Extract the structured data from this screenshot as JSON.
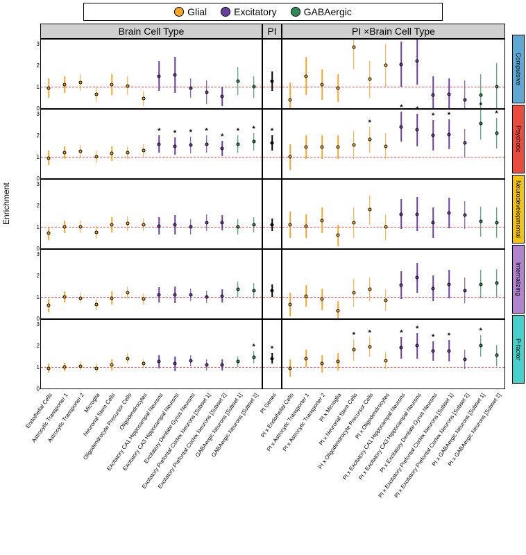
{
  "legend": {
    "items": [
      {
        "label": "Glial",
        "color": "#f5a623"
      },
      {
        "label": "Excitatory",
        "color": "#6b3fa0"
      },
      {
        "label": "GABAergic",
        "color": "#2e8b57"
      }
    ]
  },
  "colors": {
    "glial": "#f5a623",
    "excitatory": "#6b3fa0",
    "gaba": "#2e8b57",
    "pi": "#000000",
    "ref": "#ff0000",
    "header_bg": "#d0d0d0"
  },
  "panel_headers": {
    "bc": "Brain Cell Type",
    "pi": "PI",
    "pb": "PI ×Brain Cell Type"
  },
  "y_axis": {
    "label": "Enrichment",
    "min": 0,
    "max": 3.2,
    "ticks": [
      0,
      1,
      2,
      3
    ],
    "ref": 1
  },
  "outcomes": [
    {
      "name": "Compulsive",
      "color": "#5fa8d3"
    },
    {
      "name": "Psychotic",
      "color": "#e74c3c"
    },
    {
      "name": "Neurodevelopmental",
      "color": "#f1c40f"
    },
    {
      "name": "Internalizing",
      "color": "#b084cc"
    },
    {
      "name": "P-factor",
      "color": "#48d1cc"
    }
  ],
  "bc_categories": [
    {
      "label": "Endothelial Cells",
      "group": "glial"
    },
    {
      "label": "Astrocytic Transporter 1",
      "group": "glial"
    },
    {
      "label": "Astrocytic Transporter 2",
      "group": "glial"
    },
    {
      "label": "Microglia",
      "group": "glial"
    },
    {
      "label": "Neuronal Stem Cells",
      "group": "glial"
    },
    {
      "label": "Oligodendrocyte Precursor Cells",
      "group": "glial"
    },
    {
      "label": "Oligodendrocytes",
      "group": "glial"
    },
    {
      "label": "Excitatory CA1 Hippocampal Neurons",
      "group": "excitatory"
    },
    {
      "label": "Excitatory CA3 Hippocampal Neurons",
      "group": "excitatory"
    },
    {
      "label": "Excitatory Dentate Gyrus Neurons",
      "group": "excitatory"
    },
    {
      "label": "Excitatory Prefontal Cortex Neurons [Subset 1]",
      "group": "excitatory"
    },
    {
      "label": "Excitatory Prefontal Cortex Neurons [Subset 2]",
      "group": "excitatory"
    },
    {
      "label": "GABAergic Neurons [Subset 1]",
      "group": "gaba"
    },
    {
      "label": "GABAergic Neurons [Subset 2]",
      "group": "gaba"
    }
  ],
  "pi_label": "PI Genes",
  "pb_prefix": "PI x ",
  "data": {
    "Compulsive": {
      "bc": [
        {
          "v": 0.95,
          "lo": 0.5,
          "hi": 1.4
        },
        {
          "v": 1.1,
          "lo": 0.7,
          "hi": 1.5
        },
        {
          "v": 1.2,
          "lo": 0.8,
          "hi": 1.6
        },
        {
          "v": 0.65,
          "lo": 0.3,
          "hi": 1.0
        },
        {
          "v": 1.1,
          "lo": 0.6,
          "hi": 1.6
        },
        {
          "v": 1.05,
          "lo": 0.6,
          "hi": 1.5
        },
        {
          "v": 0.45,
          "lo": 0.1,
          "hi": 0.8
        },
        {
          "v": 1.5,
          "lo": 0.8,
          "hi": 2.2
        },
        {
          "v": 1.55,
          "lo": 0.7,
          "hi": 2.4
        },
        {
          "v": 0.95,
          "lo": 0.5,
          "hi": 1.4
        },
        {
          "v": 0.75,
          "lo": 0.2,
          "hi": 1.3
        },
        {
          "v": 0.55,
          "lo": 0.1,
          "hi": 1.0
        },
        {
          "v": 1.25,
          "lo": 0.6,
          "hi": 1.9
        },
        {
          "v": 1.0,
          "lo": 0.5,
          "hi": 1.5
        }
      ],
      "pi": {
        "v": 1.25,
        "lo": 0.8,
        "hi": 1.7
      },
      "pb": [
        {
          "v": 0.4,
          "lo": 0.0,
          "hi": 1.2
        },
        {
          "v": 1.5,
          "lo": 0.6,
          "hi": 2.4
        },
        {
          "v": 1.1,
          "lo": 0.4,
          "hi": 1.8
        },
        {
          "v": 0.95,
          "lo": 0.3,
          "hi": 1.6
        },
        {
          "v": 2.85,
          "lo": 1.8,
          "hi": 3.2
        },
        {
          "v": 1.35,
          "lo": 0.5,
          "hi": 2.2
        },
        {
          "v": 2.0,
          "lo": 1.0,
          "hi": 3.0
        },
        {
          "v": 2.05,
          "lo": 1.0,
          "hi": 3.1
        },
        {
          "v": 2.2,
          "lo": 1.1,
          "hi": 3.2
        },
        {
          "v": 0.6,
          "lo": 0.0,
          "hi": 1.5
        },
        {
          "v": 0.65,
          "lo": 0.0,
          "hi": 1.4
        },
        {
          "v": 0.4,
          "lo": 0.0,
          "hi": 1.3
        },
        {
          "v": 0.6,
          "lo": 0.0,
          "hi": 1.6
        },
        {
          "v": 1.0,
          "lo": 0.0,
          "hi": 2.1
        }
      ]
    },
    "Psychotic": {
      "bc": [
        {
          "v": 0.95,
          "lo": 0.6,
          "hi": 1.3
        },
        {
          "v": 1.2,
          "lo": 0.9,
          "hi": 1.5
        },
        {
          "v": 1.25,
          "lo": 0.95,
          "hi": 1.55
        },
        {
          "v": 1.0,
          "lo": 0.7,
          "hi": 1.3
        },
        {
          "v": 1.15,
          "lo": 0.8,
          "hi": 1.5
        },
        {
          "v": 1.2,
          "lo": 0.9,
          "hi": 1.5
        },
        {
          "v": 1.3,
          "lo": 1.0,
          "hi": 1.6
        },
        {
          "v": 1.6,
          "lo": 1.2,
          "hi": 2.0,
          "s": true
        },
        {
          "v": 1.5,
          "lo": 1.1,
          "hi": 1.9,
          "s": true
        },
        {
          "v": 1.55,
          "lo": 1.15,
          "hi": 1.95,
          "s": true
        },
        {
          "v": 1.6,
          "lo": 1.2,
          "hi": 2.0,
          "s": true
        },
        {
          "v": 1.4,
          "lo": 1.05,
          "hi": 1.75,
          "s": true
        },
        {
          "v": 1.6,
          "lo": 1.2,
          "hi": 2.0,
          "s": true
        },
        {
          "v": 1.7,
          "lo": 1.3,
          "hi": 2.1,
          "s": true
        }
      ],
      "pi": {
        "v": 1.65,
        "lo": 1.3,
        "hi": 2.0,
        "s": true
      },
      "pb": [
        {
          "v": 1.0,
          "lo": 0.4,
          "hi": 1.6
        },
        {
          "v": 1.45,
          "lo": 0.9,
          "hi": 2.0
        },
        {
          "v": 1.45,
          "lo": 0.9,
          "hi": 2.0
        },
        {
          "v": 1.45,
          "lo": 0.9,
          "hi": 2.0
        },
        {
          "v": 1.55,
          "lo": 0.9,
          "hi": 2.2
        },
        {
          "v": 1.8,
          "lo": 1.2,
          "hi": 2.4,
          "s": true
        },
        {
          "v": 1.5,
          "lo": 0.9,
          "hi": 2.1
        },
        {
          "v": 2.4,
          "lo": 1.7,
          "hi": 3.1,
          "s": true
        },
        {
          "v": 2.25,
          "lo": 1.5,
          "hi": 3.0,
          "s": true
        },
        {
          "v": 2.0,
          "lo": 1.3,
          "hi": 2.7,
          "s": true
        },
        {
          "v": 2.05,
          "lo": 1.35,
          "hi": 2.75,
          "s": true
        },
        {
          "v": 1.65,
          "lo": 1.0,
          "hi": 2.3
        },
        {
          "v": 2.55,
          "lo": 1.8,
          "hi": 3.2,
          "s": true
        },
        {
          "v": 2.1,
          "lo": 1.4,
          "hi": 2.8,
          "s": true
        }
      ]
    },
    "Neurodevelopmental": {
      "bc": [
        {
          "v": 0.7,
          "lo": 0.4,
          "hi": 1.0
        },
        {
          "v": 1.0,
          "lo": 0.7,
          "hi": 1.3
        },
        {
          "v": 1.0,
          "lo": 0.7,
          "hi": 1.3
        },
        {
          "v": 0.75,
          "lo": 0.45,
          "hi": 1.05
        },
        {
          "v": 1.1,
          "lo": 0.75,
          "hi": 1.45
        },
        {
          "v": 1.15,
          "lo": 0.8,
          "hi": 1.5
        },
        {
          "v": 1.1,
          "lo": 0.8,
          "hi": 1.4
        },
        {
          "v": 1.05,
          "lo": 0.65,
          "hi": 1.45
        },
        {
          "v": 1.1,
          "lo": 0.65,
          "hi": 1.55
        },
        {
          "v": 1.0,
          "lo": 0.65,
          "hi": 1.35
        },
        {
          "v": 1.2,
          "lo": 0.8,
          "hi": 1.6
        },
        {
          "v": 1.2,
          "lo": 0.85,
          "hi": 1.55
        },
        {
          "v": 1.0,
          "lo": 0.65,
          "hi": 1.35
        },
        {
          "v": 1.1,
          "lo": 0.75,
          "hi": 1.45
        }
      ],
      "pi": {
        "v": 1.1,
        "lo": 0.8,
        "hi": 1.4
      },
      "pb": [
        {
          "v": 1.1,
          "lo": 0.5,
          "hi": 1.7
        },
        {
          "v": 1.05,
          "lo": 0.5,
          "hi": 1.6
        },
        {
          "v": 1.3,
          "lo": 0.7,
          "hi": 1.9
        },
        {
          "v": 0.6,
          "lo": 0.1,
          "hi": 1.1
        },
        {
          "v": 1.2,
          "lo": 0.5,
          "hi": 1.9
        },
        {
          "v": 1.8,
          "lo": 1.1,
          "hi": 2.5
        },
        {
          "v": 1.0,
          "lo": 0.4,
          "hi": 1.6
        },
        {
          "v": 1.6,
          "lo": 0.9,
          "hi": 2.3
        },
        {
          "v": 1.6,
          "lo": 0.8,
          "hi": 2.4
        },
        {
          "v": 1.2,
          "lo": 0.5,
          "hi": 1.9
        },
        {
          "v": 1.65,
          "lo": 0.95,
          "hi": 2.35
        },
        {
          "v": 1.55,
          "lo": 0.9,
          "hi": 2.2
        },
        {
          "v": 1.25,
          "lo": 0.55,
          "hi": 1.95
        },
        {
          "v": 1.2,
          "lo": 0.5,
          "hi": 1.9
        }
      ]
    },
    "Internalizing": {
      "bc": [
        {
          "v": 0.6,
          "lo": 0.3,
          "hi": 0.9
        },
        {
          "v": 1.0,
          "lo": 0.75,
          "hi": 1.25
        },
        {
          "v": 0.95,
          "lo": 0.7,
          "hi": 1.2
        },
        {
          "v": 0.65,
          "lo": 0.4,
          "hi": 0.9
        },
        {
          "v": 0.95,
          "lo": 0.65,
          "hi": 1.25
        },
        {
          "v": 1.2,
          "lo": 0.9,
          "hi": 1.5
        },
        {
          "v": 0.9,
          "lo": 0.65,
          "hi": 1.15
        },
        {
          "v": 1.1,
          "lo": 0.75,
          "hi": 1.45
        },
        {
          "v": 1.1,
          "lo": 0.7,
          "hi": 1.5
        },
        {
          "v": 1.1,
          "lo": 0.8,
          "hi": 1.4
        },
        {
          "v": 1.0,
          "lo": 0.7,
          "hi": 1.3
        },
        {
          "v": 1.05,
          "lo": 0.75,
          "hi": 1.35
        },
        {
          "v": 1.35,
          "lo": 1.0,
          "hi": 1.7
        },
        {
          "v": 1.3,
          "lo": 0.95,
          "hi": 1.65
        }
      ],
      "pi": {
        "v": 1.3,
        "lo": 1.0,
        "hi": 1.6
      },
      "pb": [
        {
          "v": 0.65,
          "lo": 0.1,
          "hi": 1.2
        },
        {
          "v": 1.05,
          "lo": 0.55,
          "hi": 1.55
        },
        {
          "v": 0.9,
          "lo": 0.4,
          "hi": 1.4
        },
        {
          "v": 0.35,
          "lo": 0.0,
          "hi": 0.8
        },
        {
          "v": 1.2,
          "lo": 0.55,
          "hi": 1.85
        },
        {
          "v": 1.35,
          "lo": 0.8,
          "hi": 1.9
        },
        {
          "v": 0.85,
          "lo": 0.35,
          "hi": 1.35
        },
        {
          "v": 1.55,
          "lo": 0.9,
          "hi": 2.2
        },
        {
          "v": 1.9,
          "lo": 1.2,
          "hi": 2.6
        },
        {
          "v": 1.4,
          "lo": 0.8,
          "hi": 2.0
        },
        {
          "v": 1.6,
          "lo": 0.95,
          "hi": 2.25
        },
        {
          "v": 1.3,
          "lo": 0.7,
          "hi": 1.9
        },
        {
          "v": 1.6,
          "lo": 0.95,
          "hi": 2.25
        },
        {
          "v": 1.65,
          "lo": 1.0,
          "hi": 2.3
        }
      ]
    },
    "P-factor": {
      "bc": [
        {
          "v": 0.95,
          "lo": 0.75,
          "hi": 1.15
        },
        {
          "v": 1.0,
          "lo": 0.8,
          "hi": 1.2
        },
        {
          "v": 1.05,
          "lo": 0.85,
          "hi": 1.25
        },
        {
          "v": 0.95,
          "lo": 0.75,
          "hi": 1.15
        },
        {
          "v": 1.1,
          "lo": 0.85,
          "hi": 1.35
        },
        {
          "v": 1.4,
          "lo": 1.15,
          "hi": 1.65
        },
        {
          "v": 1.15,
          "lo": 0.95,
          "hi": 1.35
        },
        {
          "v": 1.25,
          "lo": 0.95,
          "hi": 1.55
        },
        {
          "v": 1.15,
          "lo": 0.8,
          "hi": 1.5
        },
        {
          "v": 1.3,
          "lo": 1.05,
          "hi": 1.55
        },
        {
          "v": 1.1,
          "lo": 0.85,
          "hi": 1.35
        },
        {
          "v": 1.1,
          "lo": 0.85,
          "hi": 1.35
        },
        {
          "v": 1.25,
          "lo": 1.0,
          "hi": 1.5
        },
        {
          "v": 1.45,
          "lo": 1.15,
          "hi": 1.75,
          "s": true
        }
      ],
      "pi": {
        "v": 1.4,
        "lo": 1.15,
        "hi": 1.65,
        "s": true
      },
      "pb": [
        {
          "v": 0.95,
          "lo": 0.55,
          "hi": 1.35
        },
        {
          "v": 1.4,
          "lo": 1.0,
          "hi": 1.8
        },
        {
          "v": 1.15,
          "lo": 0.75,
          "hi": 1.55
        },
        {
          "v": 1.25,
          "lo": 0.85,
          "hi": 1.65
        },
        {
          "v": 1.8,
          "lo": 1.3,
          "hi": 2.3,
          "s": true
        },
        {
          "v": 1.95,
          "lo": 1.5,
          "hi": 2.4,
          "s": true
        },
        {
          "v": 1.3,
          "lo": 0.9,
          "hi": 1.7
        },
        {
          "v": 1.9,
          "lo": 1.4,
          "hi": 2.4,
          "s": true
        },
        {
          "v": 2.0,
          "lo": 1.4,
          "hi": 2.6,
          "s": true
        },
        {
          "v": 1.75,
          "lo": 1.3,
          "hi": 2.2,
          "s": true
        },
        {
          "v": 1.75,
          "lo": 1.25,
          "hi": 2.25,
          "s": true
        },
        {
          "v": 1.35,
          "lo": 0.9,
          "hi": 1.8
        },
        {
          "v": 2.0,
          "lo": 1.5,
          "hi": 2.5,
          "s": true
        },
        {
          "v": 1.55,
          "lo": 1.05,
          "hi": 2.05
        }
      ]
    }
  }
}
